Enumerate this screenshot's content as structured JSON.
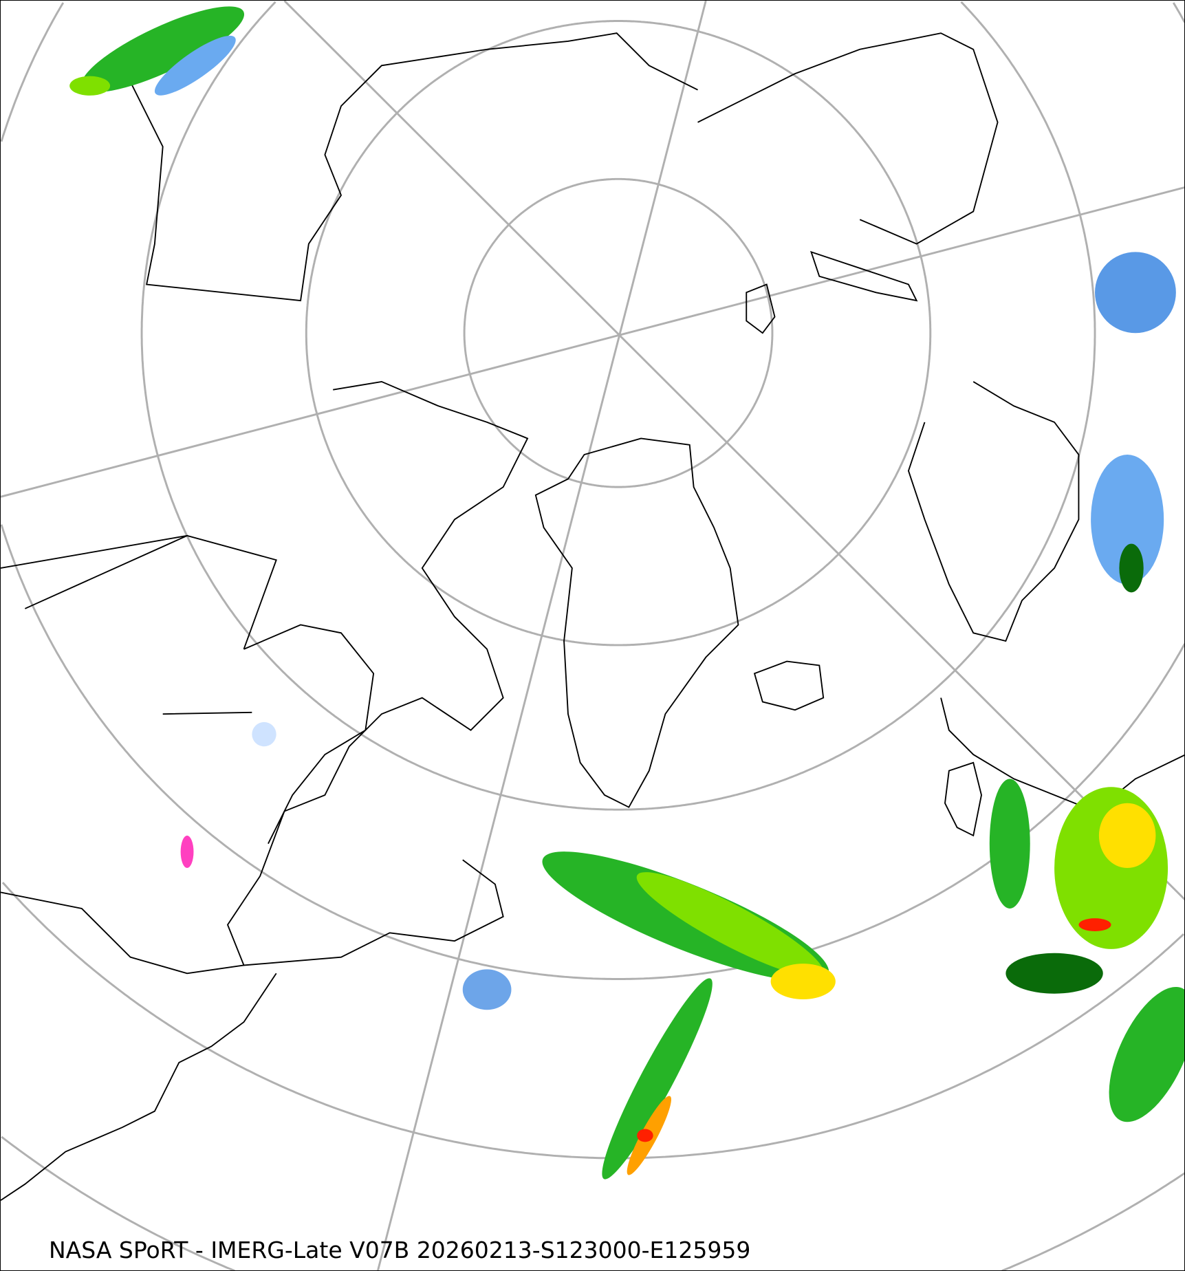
{
  "caption": "NASA SPoRT - IMERG-Late V07B 20260213-S123000-E125959",
  "map": {
    "projection": "north-polar-stereographic",
    "graticule_color": "#b0b0b0",
    "coastline_color": "#000000",
    "precip_colors": [
      "#cfe3ff",
      "#6aaaf0",
      "#2f7fe0",
      "#0a6b0a",
      "#26b426",
      "#7fe000",
      "#d8f000",
      "#ffe000",
      "#ffa000",
      "#ff2000",
      "#ff40c0"
    ]
  }
}
